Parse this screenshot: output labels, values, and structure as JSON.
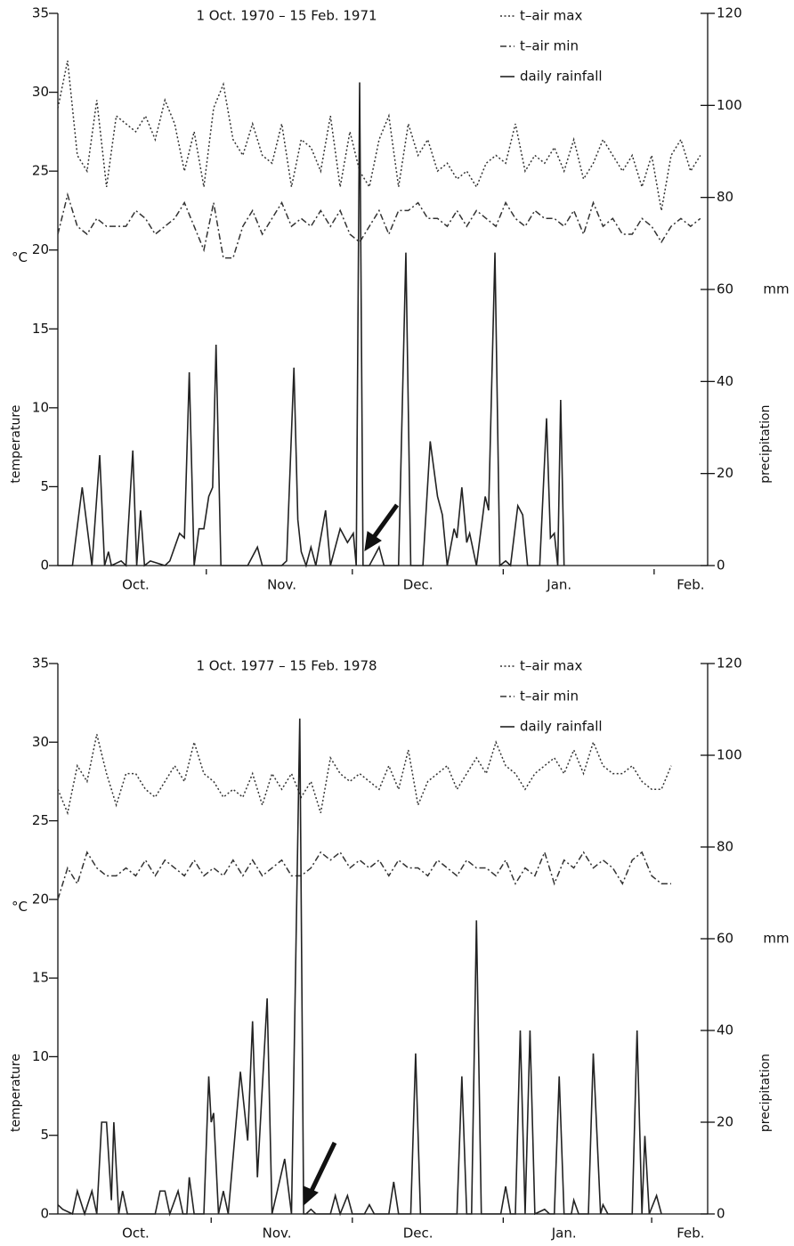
{
  "chart_data": [
    {
      "type": "line",
      "title": "1 Oct. 1970 – 15 Feb. 1971",
      "ylabel": "temperature",
      "y_unit": "°C",
      "y2label": "precipitation",
      "y2_unit": "mm",
      "xlim": [
        0,
        133.5
      ],
      "xticks": [
        {
          "value": 16,
          "label": "Oct."
        },
        {
          "value": 46,
          "label": "Nov."
        },
        {
          "value": 74,
          "label": "Dec."
        },
        {
          "value": 103,
          "label": "Jan."
        },
        {
          "value": 130,
          "label": "Feb."
        }
      ],
      "xminorticks": [
        30.5,
        60.5,
        91.5,
        122.5
      ],
      "ylim": [
        0,
        35
      ],
      "yticks": [
        0,
        5,
        10,
        15,
        20,
        25,
        30,
        35
      ],
      "y2lim": [
        0,
        120
      ],
      "y2ticks": [
        0,
        20,
        40,
        60,
        80,
        100,
        120
      ],
      "series": [
        {
          "name": "t–air max",
          "color": "#333333",
          "dash": "dotted",
          "x": [
            0,
            2,
            4,
            6,
            8,
            10,
            12,
            14,
            16,
            18,
            20,
            22,
            24,
            26,
            28,
            30,
            32,
            34,
            36,
            38,
            40,
            42,
            44,
            46,
            48,
            50,
            52,
            54,
            56,
            58,
            60,
            62,
            64,
            66,
            68,
            70,
            72,
            74,
            76,
            78,
            80,
            82,
            84,
            86,
            88,
            90,
            92,
            94,
            96,
            98,
            100,
            102,
            104,
            106,
            108,
            110,
            112,
            114,
            116,
            118,
            120,
            122,
            124,
            126,
            128,
            130,
            132
          ],
          "values": [
            29,
            32,
            26,
            25,
            29.5,
            24,
            28.5,
            28,
            27.5,
            28.5,
            27,
            29.5,
            28,
            25,
            27.5,
            24,
            29,
            30.5,
            27,
            26,
            28,
            26,
            25.5,
            28,
            24,
            27,
            26.5,
            25,
            28.5,
            24,
            27.5,
            25,
            24,
            27,
            28.5,
            24,
            28,
            26,
            27,
            25,
            25.5,
            24.5,
            25,
            24,
            25.5,
            26,
            25.5,
            28,
            25,
            26,
            25.5,
            26.5,
            25,
            27,
            24.5,
            25.5,
            27,
            26,
            25,
            26,
            24,
            26,
            22.5,
            26,
            27,
            25,
            26
          ]
        },
        {
          "name": "t–air min",
          "color": "#333333",
          "dash": "dashdot",
          "x": [
            0,
            2,
            4,
            6,
            8,
            10,
            12,
            14,
            16,
            18,
            20,
            22,
            24,
            26,
            28,
            30,
            32,
            34,
            36,
            38,
            40,
            42,
            44,
            46,
            48,
            50,
            52,
            54,
            56,
            58,
            60,
            62,
            64,
            66,
            68,
            70,
            72,
            74,
            76,
            78,
            80,
            82,
            84,
            86,
            88,
            90,
            92,
            94,
            96,
            98,
            100,
            102,
            104,
            106,
            108,
            110,
            112,
            114,
            116,
            118,
            120,
            122,
            124,
            126,
            128,
            130,
            132
          ],
          "values": [
            21,
            23.5,
            21.5,
            21,
            22,
            21.5,
            21.5,
            21.5,
            22.5,
            22,
            21,
            21.5,
            22,
            23,
            21.5,
            20,
            23,
            19.5,
            19.5,
            21.5,
            22.5,
            21,
            22,
            23,
            21.5,
            22,
            21.5,
            22.5,
            21.5,
            22.5,
            21,
            20.5,
            21.5,
            22.5,
            21,
            22.5,
            22.5,
            23,
            22,
            22,
            21.5,
            22.5,
            21.5,
            22.5,
            22,
            21.5,
            23,
            22,
            21.5,
            22.5,
            22,
            22,
            21.5,
            22.5,
            21,
            23,
            21.5,
            22,
            21,
            21,
            22,
            21.5,
            20.5,
            21.5,
            22,
            21.5,
            22
          ]
        },
        {
          "name": "daily rainfall",
          "color": "#222222",
          "dash": "solid",
          "axis": "y2",
          "x": [
            0,
            3,
            5,
            7,
            8.6,
            9.6,
            10.4,
            11,
            13,
            14,
            15.4,
            16.2,
            17,
            17.8,
            19,
            22,
            23,
            25,
            26,
            27,
            28,
            29,
            30,
            31,
            31.8,
            32.5,
            33.5,
            39,
            41,
            42,
            46,
            47,
            48.5,
            49.3,
            50,
            51,
            52,
            53,
            55,
            56,
            58,
            59.5,
            60.7,
            61.3,
            62,
            62.7,
            64,
            66,
            67,
            70,
            71.5,
            72.5,
            75,
            76.5,
            78,
            79,
            80,
            81.4,
            82,
            83,
            84,
            84.6,
            86,
            87.8,
            88.5,
            89.8,
            90.8,
            92,
            93,
            94.5,
            95.5,
            96.5,
            99,
            100.4,
            101.2,
            102,
            102.7,
            103.3,
            104
          ],
          "values": [
            0,
            0,
            17,
            0,
            24,
            0,
            3,
            0,
            1,
            0,
            25,
            0,
            12,
            0,
            1,
            0,
            1,
            7,
            6,
            42,
            0,
            8,
            8,
            15,
            17,
            48,
            0,
            0,
            4,
            0,
            0,
            1,
            43,
            10,
            3,
            0,
            4,
            0,
            12,
            0,
            8,
            5,
            7,
            0,
            105,
            0,
            0,
            4,
            0,
            0,
            68,
            0,
            0,
            27,
            15,
            11,
            0,
            8,
            6,
            17,
            5,
            7,
            0,
            15,
            12,
            68,
            0,
            1,
            0,
            13,
            11,
            0,
            0,
            32,
            6,
            7,
            0,
            36,
            0
          ]
        }
      ]
    },
    {
      "type": "line",
      "title": "1 Oct. 1977 – 15 Feb. 1978",
      "ylabel": "temperature",
      "y_unit": "°C",
      "y2label": "precipitation",
      "y2_unit": "mm",
      "xlim": [
        0,
        133.5
      ],
      "xticks": [
        {
          "value": 16,
          "label": "Oct."
        },
        {
          "value": 45,
          "label": "Nov."
        },
        {
          "value": 74,
          "label": "Dec."
        },
        {
          "value": 104,
          "label": "Jan."
        },
        {
          "value": 130,
          "label": "Feb."
        }
      ],
      "xminorticks": [
        31.5,
        60.5,
        91.5,
        122
      ],
      "ylim": [
        0,
        35
      ],
      "yticks": [
        0,
        5,
        10,
        15,
        20,
        25,
        30,
        35
      ],
      "y2lim": [
        0,
        120
      ],
      "y2ticks": [
        0,
        20,
        40,
        60,
        80,
        100,
        120
      ],
      "series": [
        {
          "name": "t–air max",
          "color": "#333333",
          "dash": "dotted",
          "x": [
            0,
            2,
            4,
            6,
            8,
            10,
            12,
            14,
            16,
            18,
            20,
            22,
            24,
            26,
            28,
            30,
            32,
            34,
            36,
            38,
            40,
            42,
            44,
            46,
            48,
            50,
            52,
            54,
            56,
            58,
            60,
            62,
            64,
            66,
            68,
            70,
            72,
            74,
            76,
            78,
            80,
            82,
            84,
            86,
            88,
            90,
            92,
            94,
            96,
            98,
            100,
            102,
            104,
            106,
            108,
            110,
            112,
            114,
            116,
            118,
            120,
            122,
            124,
            126
          ],
          "values": [
            27,
            25.5,
            28.5,
            27.5,
            30.5,
            28,
            26,
            28,
            28,
            27,
            26.5,
            27.5,
            28.5,
            27.5,
            30,
            28,
            27.5,
            26.5,
            27,
            26.5,
            28,
            26,
            28,
            27,
            28,
            26.5,
            27.5,
            25.5,
            29,
            28,
            27.5,
            28,
            27.5,
            27,
            28.5,
            27,
            29.5,
            26,
            27.5,
            28,
            28.5,
            27,
            28,
            29,
            28,
            30,
            28.5,
            28,
            27,
            28,
            28.5,
            29,
            28,
            29.5,
            28,
            30,
            28.5,
            28,
            28,
            28.5,
            27.5,
            27,
            27,
            28.5
          ]
        },
        {
          "name": "t–air min",
          "color": "#333333",
          "dash": "dashdot",
          "x": [
            0,
            2,
            4,
            6,
            8,
            10,
            12,
            14,
            16,
            18,
            20,
            22,
            24,
            26,
            28,
            30,
            32,
            34,
            36,
            38,
            40,
            42,
            44,
            46,
            48,
            50,
            52,
            54,
            56,
            58,
            60,
            62,
            64,
            66,
            68,
            70,
            72,
            74,
            76,
            78,
            80,
            82,
            84,
            86,
            88,
            90,
            92,
            94,
            96,
            98,
            100,
            102,
            104,
            106,
            108,
            110,
            112,
            114,
            116,
            118,
            120,
            122,
            124,
            126
          ],
          "values": [
            20,
            22,
            21,
            23,
            22,
            21.5,
            21.5,
            22,
            21.5,
            22.5,
            21.5,
            22.5,
            22,
            21.5,
            22.5,
            21.5,
            22,
            21.5,
            22.5,
            21.5,
            22.5,
            21.5,
            22,
            22.5,
            21.5,
            21.5,
            22,
            23,
            22.5,
            23,
            22,
            22.5,
            22,
            22.5,
            21.5,
            22.5,
            22,
            22,
            21.5,
            22.5,
            22,
            21.5,
            22.5,
            22,
            22,
            21.5,
            22.5,
            21,
            22,
            21.5,
            23,
            21,
            22.5,
            22,
            23,
            22,
            22.5,
            22,
            21,
            22.5,
            23,
            21.5,
            21,
            21
          ]
        },
        {
          "name": "daily  rainfall",
          "color": "#222222",
          "dash": "solid",
          "axis": "y2",
          "x": [
            0,
            1,
            3,
            4,
            5.5,
            7,
            8,
            9,
            10,
            11,
            11.5,
            12.5,
            13.3,
            14.3,
            20,
            21,
            22,
            23,
            24.7,
            25.7,
            26.5,
            27,
            28,
            30,
            31,
            31.5,
            32,
            33,
            34,
            35,
            37.5,
            39,
            40,
            41,
            43,
            44,
            46.6,
            48,
            49.7,
            50.5,
            51,
            52,
            53,
            56,
            57,
            58,
            59.5,
            60.5,
            63,
            64,
            65,
            68,
            69,
            70,
            72.5,
            73.5,
            74.5,
            82,
            83,
            84,
            85,
            86,
            87,
            91,
            92,
            93,
            94,
            95,
            96,
            97,
            98,
            100,
            101,
            102,
            103,
            104,
            105.5,
            106,
            107,
            109,
            110,
            111.5,
            112,
            113,
            118,
            119,
            120,
            120.6,
            121.5,
            123,
            124
          ],
          "values": [
            2,
            1,
            0,
            5,
            0,
            5,
            0,
            20,
            20,
            3,
            20,
            0,
            5,
            0,
            0,
            5,
            5,
            0,
            5,
            0,
            0,
            8,
            0,
            0,
            30,
            20,
            22,
            0,
            5,
            0,
            31,
            16,
            42,
            8,
            47,
            0,
            12,
            0,
            108,
            0,
            0,
            1,
            0,
            0,
            4,
            0,
            4,
            0,
            0,
            2,
            0,
            0,
            7,
            0,
            0,
            35,
            0,
            0,
            30,
            0,
            0,
            64,
            0,
            0,
            6,
            0,
            0,
            40,
            0,
            40,
            0,
            1,
            0,
            0,
            30,
            0,
            0,
            3,
            0,
            0,
            35,
            0,
            2,
            0,
            0,
            40,
            0,
            17,
            0,
            4,
            0
          ]
        }
      ]
    }
  ]
}
